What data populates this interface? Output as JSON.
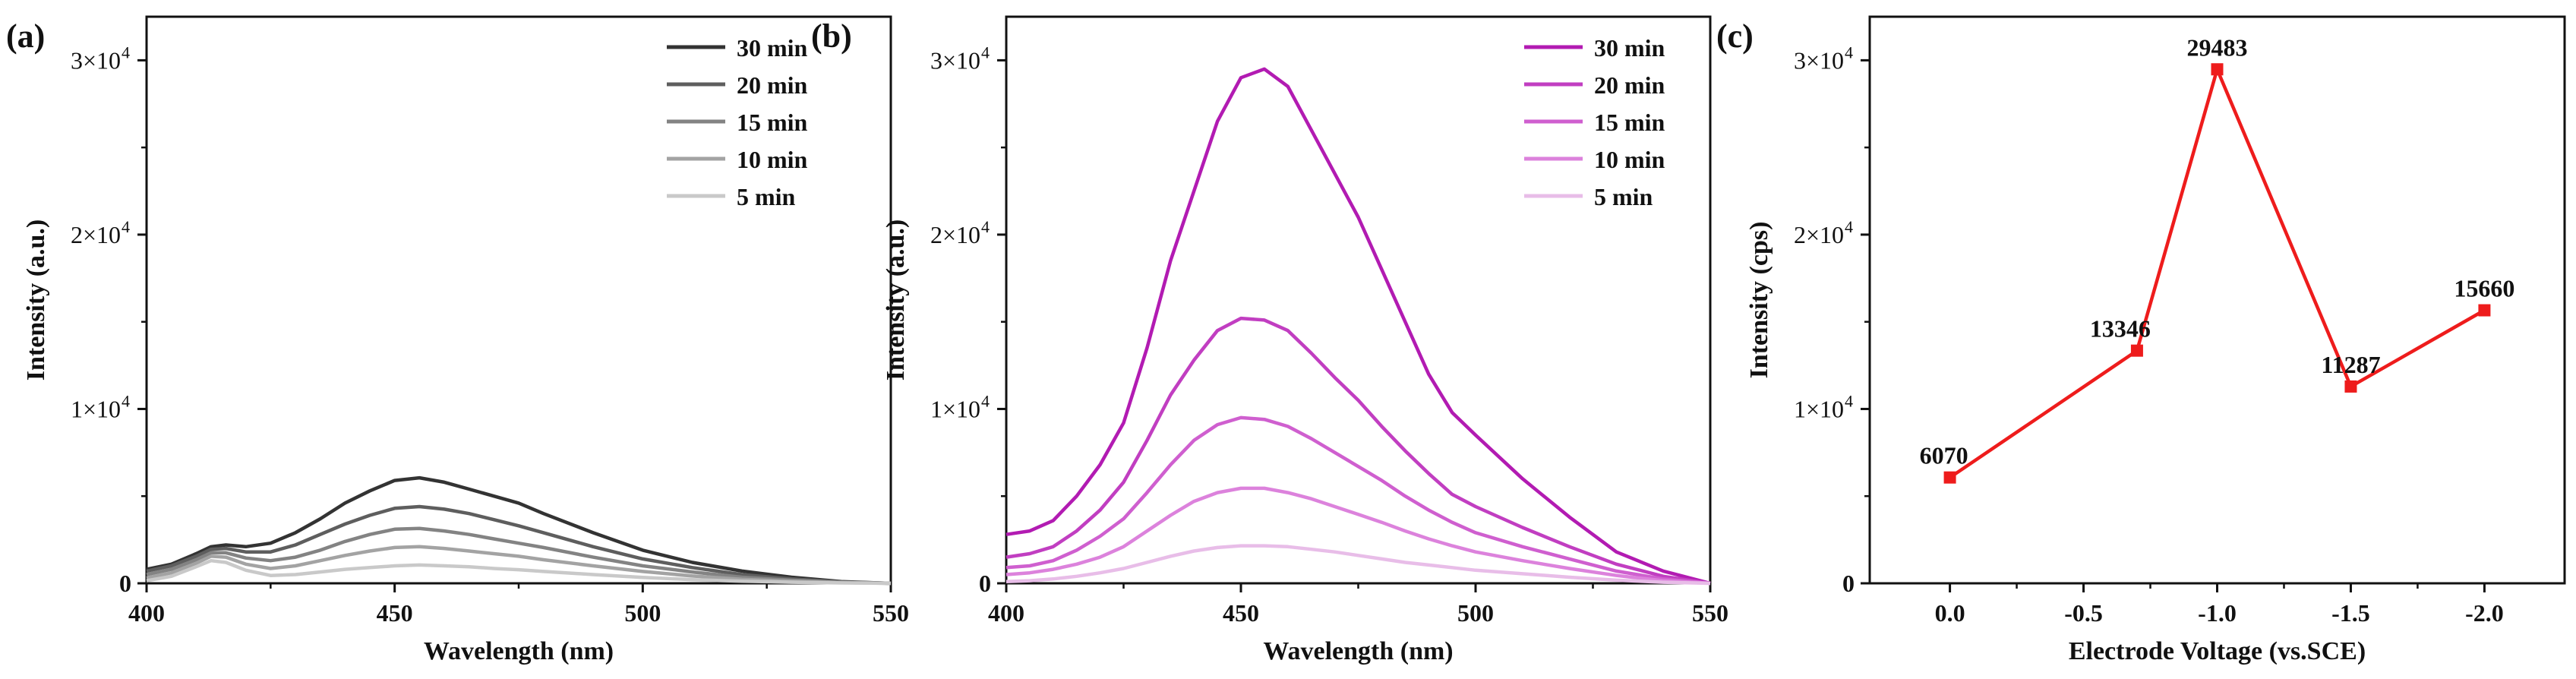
{
  "chart_data": [
    {
      "panel": "(a)",
      "type": "line",
      "xlabel": "Wavelength (nm)",
      "ylabel": "Intensity (a.u.)",
      "xlim": [
        400,
        550
      ],
      "ylim": [
        0,
        32500
      ],
      "x_ticks": [
        400,
        450,
        500,
        550
      ],
      "y_ticks": [
        0,
        10000,
        20000,
        30000
      ],
      "y_tick_labels": [
        {
          "value": 0,
          "mant": "0",
          "exp": ""
        },
        {
          "value": 10000,
          "mant": "1×10",
          "exp": "4"
        },
        {
          "value": 20000,
          "mant": "2×10",
          "exp": "4"
        },
        {
          "value": 30000,
          "mant": "3×10",
          "exp": "4"
        }
      ],
      "x": [
        400,
        405,
        410,
        413,
        416,
        420,
        425,
        430,
        435,
        440,
        445,
        450,
        455,
        460,
        465,
        470,
        475,
        480,
        490,
        500,
        510,
        520,
        530,
        540,
        550
      ],
      "series": [
        {
          "name": "30 min",
          "color": "#333333",
          "values": [
            800,
            1100,
            1700,
            2100,
            2200,
            2100,
            2300,
            2900,
            3700,
            4600,
            5300,
            5900,
            6050,
            5800,
            5400,
            5000,
            4600,
            4000,
            2900,
            1900,
            1200,
            700,
            350,
            100,
            0
          ]
        },
        {
          "name": "20 min",
          "color": "#5e5e5e",
          "values": [
            700,
            1000,
            1550,
            1950,
            2000,
            1800,
            1800,
            2200,
            2800,
            3400,
            3900,
            4300,
            4400,
            4250,
            4000,
            3650,
            3300,
            2900,
            2100,
            1400,
            900,
            500,
            250,
            80,
            0
          ]
        },
        {
          "name": "15 min",
          "color": "#838383",
          "values": [
            500,
            800,
            1350,
            1750,
            1750,
            1450,
            1300,
            1500,
            1900,
            2400,
            2800,
            3100,
            3150,
            3000,
            2800,
            2550,
            2300,
            2050,
            1500,
            1000,
            650,
            350,
            180,
            60,
            0
          ]
        },
        {
          "name": "10 min",
          "color": "#a3a3a3",
          "values": [
            300,
            600,
            1150,
            1550,
            1500,
            1100,
            850,
            1000,
            1300,
            1600,
            1850,
            2050,
            2100,
            2000,
            1850,
            1700,
            1550,
            1350,
            1000,
            680,
            420,
            230,
            120,
            40,
            0
          ]
        },
        {
          "name": "5 min",
          "color": "#c9c9c9",
          "values": [
            150,
            400,
            950,
            1300,
            1200,
            750,
            450,
            500,
            650,
            800,
            900,
            1000,
            1050,
            1000,
            950,
            850,
            780,
            680,
            500,
            340,
            210,
            120,
            60,
            20,
            0
          ]
        }
      ]
    },
    {
      "panel": "(b)",
      "type": "line",
      "xlabel": "Wavelength (nm)",
      "ylabel": "Intensity (a.u.)",
      "xlim": [
        400,
        550
      ],
      "ylim": [
        0,
        32500
      ],
      "x_ticks": [
        400,
        450,
        500,
        550
      ],
      "y_ticks": [
        0,
        10000,
        20000,
        30000
      ],
      "y_tick_labels": [
        {
          "value": 0,
          "mant": "0",
          "exp": ""
        },
        {
          "value": 10000,
          "mant": "1×10",
          "exp": "4"
        },
        {
          "value": 20000,
          "mant": "2×10",
          "exp": "4"
        },
        {
          "value": 30000,
          "mant": "3×10",
          "exp": "4"
        }
      ],
      "x": [
        400,
        405,
        410,
        415,
        420,
        425,
        430,
        435,
        440,
        445,
        450,
        455,
        460,
        465,
        470,
        475,
        480,
        485,
        490,
        495,
        500,
        510,
        520,
        530,
        540,
        550
      ],
      "series": [
        {
          "name": "30 min",
          "color": "#b21bb2",
          "values": [
            2800,
            3000,
            3600,
            5000,
            6800,
            9200,
            13500,
            18500,
            22500,
            26500,
            29000,
            29500,
            28500,
            26000,
            23500,
            21000,
            18000,
            15000,
            12000,
            9800,
            8500,
            6000,
            3800,
            1800,
            700,
            0
          ]
        },
        {
          "name": "20 min",
          "color": "#c13ec1",
          "values": [
            1500,
            1700,
            2100,
            3000,
            4200,
            5800,
            8200,
            10800,
            12800,
            14500,
            15200,
            15100,
            14500,
            13200,
            11800,
            10500,
            9000,
            7600,
            6300,
            5100,
            4400,
            3200,
            2100,
            1100,
            400,
            0
          ]
        },
        {
          "name": "15 min",
          "color": "#cf5fcf",
          "values": [
            900,
            1000,
            1300,
            1900,
            2700,
            3700,
            5200,
            6800,
            8200,
            9100,
            9500,
            9400,
            9000,
            8300,
            7500,
            6700,
            5900,
            5000,
            4200,
            3500,
            2900,
            2100,
            1400,
            700,
            250,
            0
          ]
        },
        {
          "name": "10 min",
          "color": "#dc82dc",
          "values": [
            500,
            600,
            800,
            1100,
            1500,
            2100,
            3000,
            3900,
            4700,
            5200,
            5450,
            5450,
            5200,
            4850,
            4400,
            3950,
            3500,
            3000,
            2550,
            2150,
            1800,
            1300,
            850,
            450,
            150,
            0
          ]
        },
        {
          "name": "5 min",
          "color": "#e8bde8",
          "values": [
            100,
            150,
            250,
            400,
            600,
            850,
            1200,
            1550,
            1850,
            2050,
            2150,
            2150,
            2100,
            1950,
            1800,
            1600,
            1400,
            1200,
            1050,
            900,
            750,
            550,
            350,
            180,
            60,
            0
          ]
        }
      ]
    },
    {
      "panel": "(c)",
      "type": "line",
      "xlabel": "Electrode Voltage (vs.SCE)",
      "ylabel": "Intensity (cps)",
      "xlim": [
        0.3,
        -2.3
      ],
      "ylim": [
        0,
        32500
      ],
      "x_ticks": [
        0,
        -0.5,
        -1,
        -1.5,
        -2
      ],
      "x_tick_labels": [
        "0.0",
        "-0.5",
        "-1.0",
        "-1.5",
        "-2.0"
      ],
      "y_ticks": [
        0,
        10000,
        20000,
        30000
      ],
      "y_tick_labels": [
        {
          "value": 0,
          "mant": "0",
          "exp": ""
        },
        {
          "value": 10000,
          "mant": "1×10",
          "exp": "4"
        },
        {
          "value": 20000,
          "mant": "2×10",
          "exp": "4"
        },
        {
          "value": 30000,
          "mant": "3×10",
          "exp": "4"
        }
      ],
      "color": "#ee1c1c",
      "x": [
        0,
        -0.7,
        -1.0,
        -1.5,
        -2.0
      ],
      "values": [
        6070,
        13346,
        29483,
        11287,
        15660
      ],
      "data_labels": [
        "6070",
        "13346",
        "29483",
        "11287",
        "15660"
      ]
    }
  ]
}
